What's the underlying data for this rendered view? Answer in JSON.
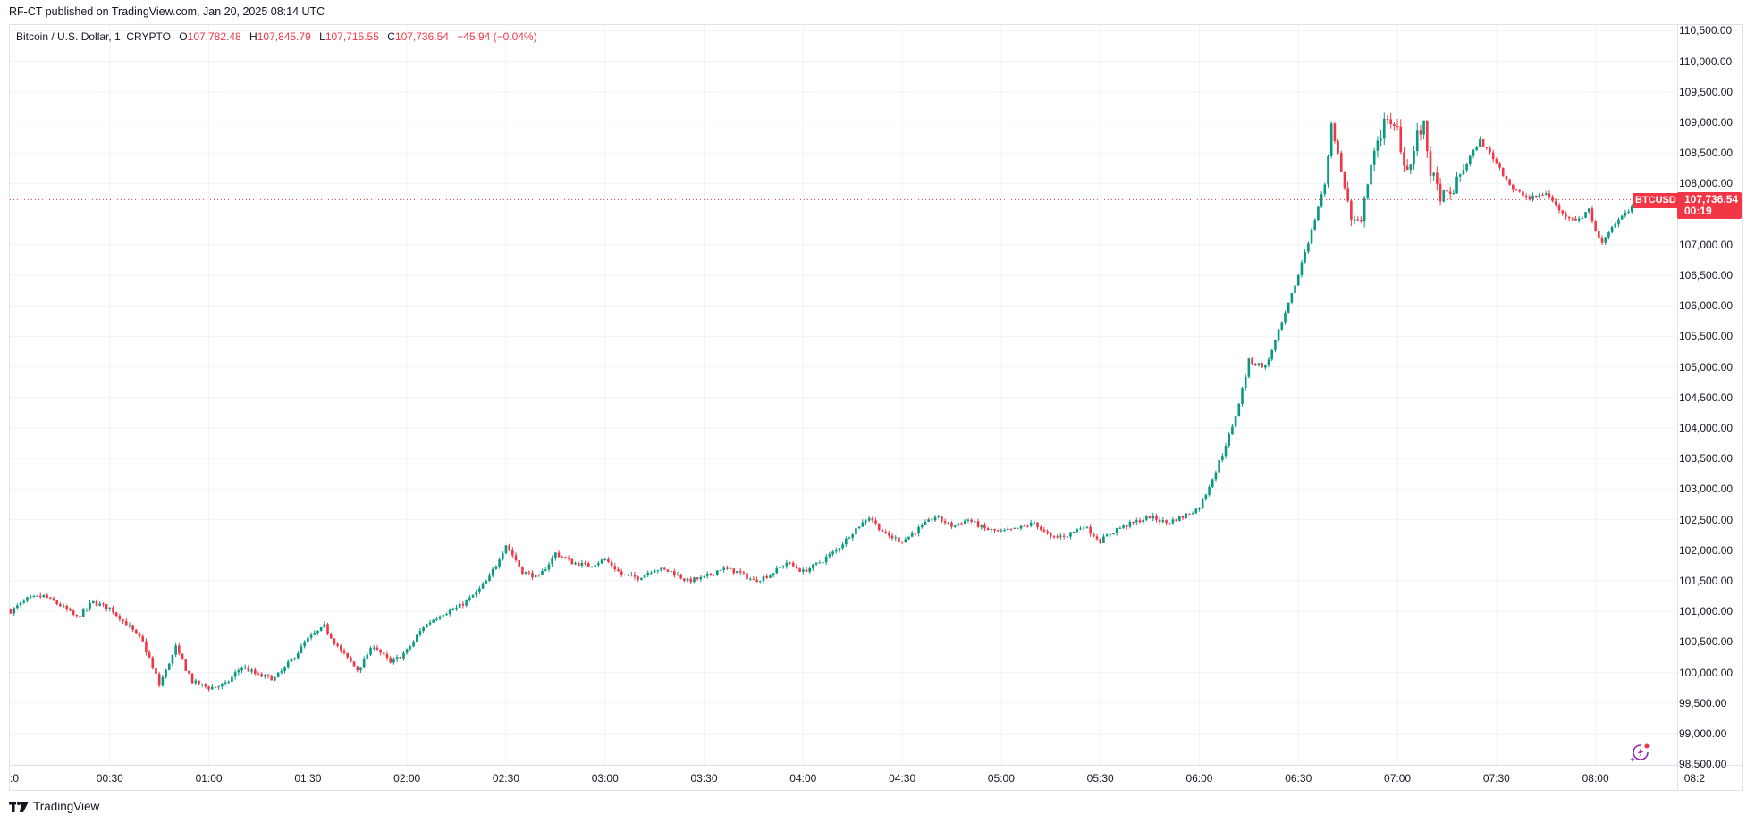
{
  "header": {
    "publish_text": "RF-CT published on TradingView.com, Jan 20, 2025 08:14 UTC"
  },
  "legend": {
    "symbol": "Bitcoin / U.S. Dollar, 1, CRYPTO",
    "open_label": "O",
    "open": "107,782.48",
    "high_label": "H",
    "high": "107,845.79",
    "low_label": "L",
    "low": "107,715.55",
    "close_label": "C",
    "close": "107,736.54",
    "change": "−45.94 (−0.04%)"
  },
  "last_price": {
    "symbol_tag": "BTCUSD",
    "price": "107,736.54",
    "countdown": "00:19",
    "color": "#F23645"
  },
  "footer": {
    "brand": "TradingView",
    "brand_icon": "tradingview-logo-icon"
  },
  "icons": {
    "lightning": "lightning-bolt-icon"
  },
  "colors": {
    "up": "#089981",
    "down": "#F23645",
    "grid": "#f0f3fa",
    "text": "#131722"
  },
  "chart_data": {
    "type": "candlestick",
    "title": "Bitcoin / U.S. Dollar, 1, CRYPTO",
    "xlabel": "",
    "ylabel": "",
    "interval": "1 minute",
    "ylim": [
      98500,
      110500
    ],
    "y_ticks": [
      "110,500.00",
      "110,000.00",
      "109,500.00",
      "109,000.00",
      "108,500.00",
      "108,000.00",
      "107,000.00",
      "106,500.00",
      "106,000.00",
      "105,500.00",
      "105,000.00",
      "104,500.00",
      "104,000.00",
      "103,500.00",
      "103,000.00",
      "102,500.00",
      "102,000.00",
      "101,500.00",
      "101,000.00",
      "100,500.00",
      "100,000.00",
      "99,500.00",
      "99,000.00",
      "98,500.00"
    ],
    "x_ticks": [
      ":0",
      "00:30",
      "01:00",
      "01:30",
      "02:00",
      "02:30",
      "03:00",
      "03:30",
      "04:00",
      "04:30",
      "05:00",
      "05:30",
      "06:00",
      "06:30",
      "07:00",
      "07:30",
      "08:00",
      "08:2"
    ],
    "grid": true,
    "last": {
      "open": 107782.48,
      "high": 107845.79,
      "low": 107715.55,
      "close": 107736.54,
      "change": -45.94,
      "change_pct": -0.04
    },
    "close_path_minutes": [
      0,
      5,
      10,
      15,
      20,
      25,
      30,
      35,
      40,
      45,
      50,
      55,
      60,
      65,
      70,
      75,
      80,
      85,
      90,
      95,
      100,
      105,
      110,
      115,
      120,
      125,
      130,
      135,
      140,
      145,
      150,
      155,
      160,
      165,
      170,
      175,
      180,
      185,
      190,
      195,
      200,
      205,
      210,
      215,
      220,
      225,
      230,
      235,
      240,
      245,
      250,
      255,
      260,
      265,
      270,
      275,
      280,
      285,
      290,
      295,
      300,
      305,
      310,
      315,
      320,
      325,
      330,
      335,
      340,
      345,
      350,
      355,
      360,
      365,
      370,
      375,
      380,
      385,
      390,
      392,
      395,
      398,
      400,
      403,
      406,
      409,
      410,
      412,
      414,
      416,
      418,
      420,
      422,
      424,
      426,
      428,
      430,
      433,
      436,
      440,
      445,
      450,
      455,
      460,
      465,
      470,
      475,
      478,
      480,
      482,
      485,
      488,
      490,
      494
    ],
    "close_path_values": [
      101000,
      101200,
      101250,
      101100,
      100900,
      101150,
      101050,
      100800,
      100500,
      99800,
      100400,
      99850,
      99750,
      99800,
      100100,
      99950,
      99900,
      100200,
      100550,
      100750,
      100350,
      100050,
      100450,
      100150,
      100350,
      100750,
      100950,
      101050,
      101250,
      101550,
      102100,
      101650,
      101550,
      101950,
      101800,
      101750,
      101850,
      101600,
      101550,
      101700,
      101650,
      101500,
      101550,
      101700,
      101650,
      101500,
      101600,
      101800,
      101650,
      101800,
      102000,
      102300,
      102550,
      102250,
      102150,
      102350,
      102550,
      102400,
      102500,
      102350,
      102300,
      102350,
      102450,
      102200,
      102250,
      102400,
      102150,
      102350,
      102450,
      102550,
      102450,
      102550,
      102700,
      103300,
      104000,
      105100,
      105000,
      105700,
      106500,
      106900,
      107400,
      108000,
      109000,
      108200,
      107400,
      107300,
      107800,
      108300,
      108600,
      109100,
      108900,
      108900,
      108300,
      108300,
      108800,
      108900,
      108200,
      107800,
      107800,
      108250,
      108700,
      108350,
      107900,
      107750,
      107850,
      107500,
      107400,
      107600,
      107200,
      107050,
      107300,
      107450,
      107550,
      107750
    ]
  }
}
